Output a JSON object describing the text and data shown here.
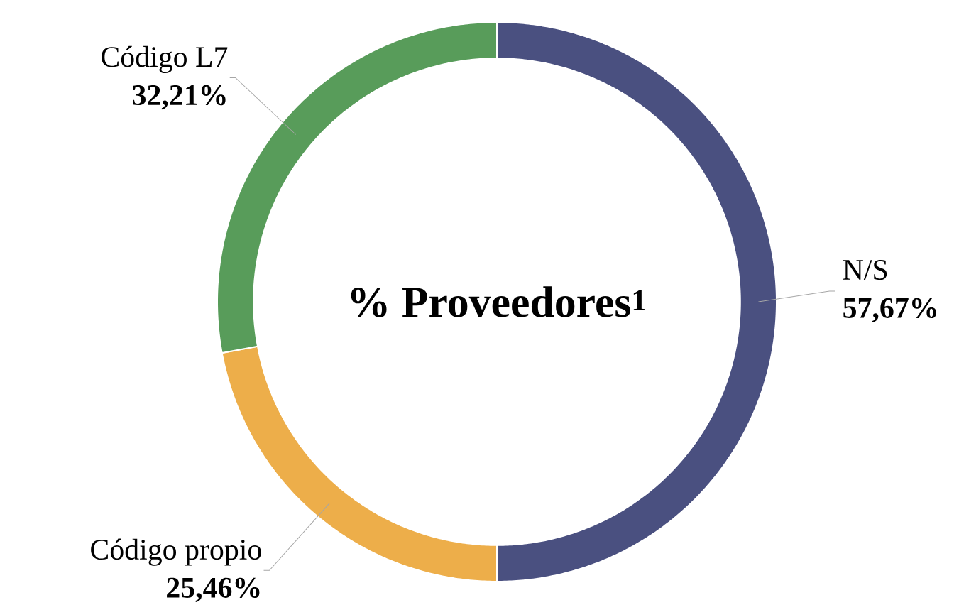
{
  "chart_data": {
    "type": "donut",
    "title": "% Proveedores$^{1}$",
    "categories": [
      "N/S",
      "Código propio",
      "Código L7"
    ],
    "values": [
      57.67,
      25.46,
      32.21
    ],
    "value_labels": [
      "57,67%",
      "25,46%",
      "32,21%"
    ],
    "colors": [
      "#4a5080",
      "#edae4a",
      "#589c5a"
    ]
  }
}
